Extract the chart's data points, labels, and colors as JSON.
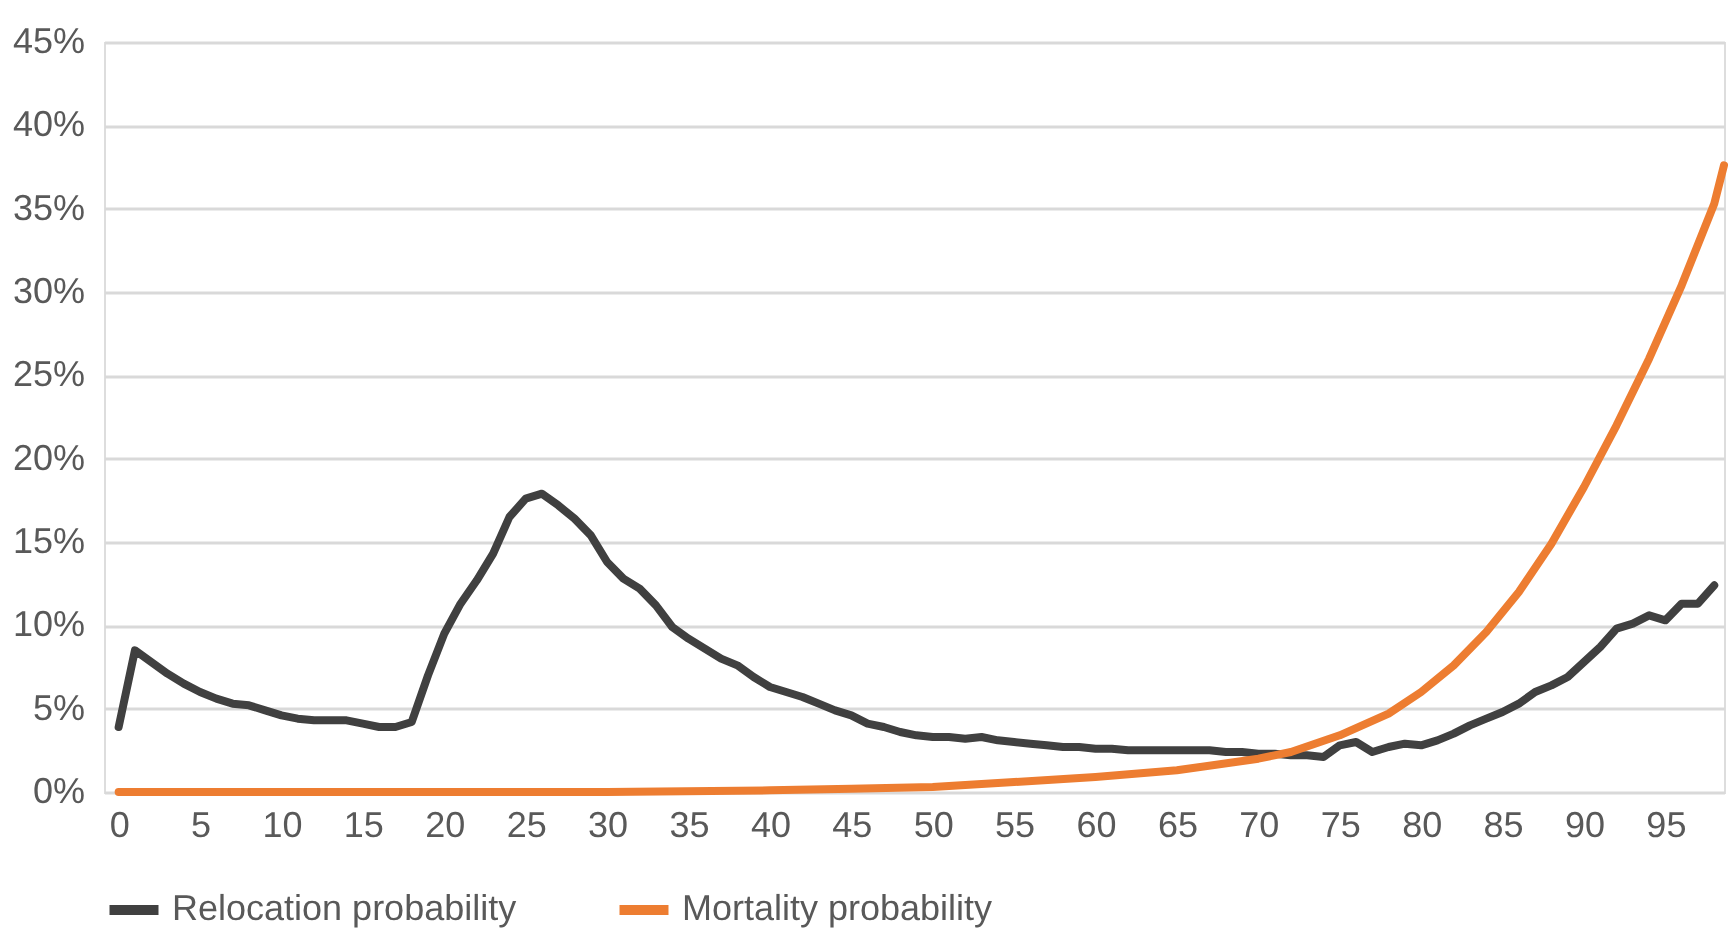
{
  "chart_data": {
    "type": "line",
    "x": [
      0,
      1,
      2,
      3,
      4,
      5,
      6,
      7,
      8,
      9,
      10,
      11,
      12,
      13,
      14,
      15,
      16,
      17,
      18,
      19,
      20,
      21,
      22,
      23,
      24,
      25,
      26,
      27,
      28,
      29,
      30,
      31,
      32,
      33,
      34,
      35,
      36,
      37,
      38,
      39,
      40,
      41,
      42,
      43,
      44,
      45,
      46,
      47,
      48,
      49,
      50,
      51,
      52,
      53,
      54,
      55,
      56,
      57,
      58,
      59,
      60,
      61,
      62,
      63,
      64,
      65,
      66,
      67,
      68,
      69,
      70,
      71,
      72,
      73,
      74,
      75,
      76,
      77,
      78,
      79,
      80,
      81,
      82,
      83,
      84,
      85,
      86,
      87,
      88,
      89,
      90,
      91,
      92,
      93,
      94,
      95,
      96,
      97,
      98
    ],
    "series": [
      {
        "name": "Relocation probability",
        "color": "#404040",
        "values": [
          3.9,
          8.5,
          7.8,
          7.1,
          6.5,
          6.0,
          5.6,
          5.3,
          5.2,
          4.9,
          4.6,
          4.4,
          4.3,
          4.3,
          4.3,
          4.1,
          3.9,
          3.9,
          4.2,
          7.0,
          9.5,
          11.3,
          12.7,
          14.3,
          16.5,
          17.6,
          17.9,
          17.2,
          16.4,
          15.4,
          13.8,
          12.8,
          12.2,
          11.2,
          9.9,
          9.2,
          8.6,
          8.0,
          7.6,
          6.9,
          6.3,
          6.0,
          5.7,
          5.3,
          4.9,
          4.6,
          4.1,
          3.9,
          3.6,
          3.4,
          3.3,
          3.3,
          3.2,
          3.3,
          3.1,
          3.0,
          2.9,
          2.8,
          2.7,
          2.7,
          2.6,
          2.6,
          2.5,
          2.5,
          2.5,
          2.5,
          2.5,
          2.5,
          2.4,
          2.4,
          2.3,
          2.3,
          2.2,
          2.2,
          2.1,
          2.8,
          3.0,
          2.4,
          2.7,
          2.9,
          2.8,
          3.1,
          3.5,
          4.0,
          4.4,
          4.8,
          5.3,
          6.0,
          6.4,
          6.9,
          7.8,
          8.7,
          9.8,
          10.1,
          10.6,
          10.3,
          11.3,
          11.3,
          12.4
        ]
      },
      {
        "name": "Mortality probability",
        "color": "#ed7d31",
        "x": [
          0,
          10,
          20,
          30,
          40,
          45,
          50,
          55,
          60,
          65,
          70,
          72,
          75,
          78,
          80,
          82,
          84,
          85,
          86,
          88,
          90,
          92,
          94,
          96,
          98,
          98.6
        ],
        "values": [
          0.0,
          0.0,
          0.0,
          0.0,
          0.1,
          0.2,
          0.3,
          0.6,
          0.9,
          1.3,
          2.0,
          2.4,
          3.4,
          4.7,
          6.0,
          7.6,
          9.6,
          10.8,
          12.0,
          14.9,
          18.3,
          22.0,
          26.0,
          30.4,
          35.3,
          37.6
        ]
      }
    ],
    "xlim": [
      -0.9,
      98.6
    ],
    "xticks": [
      0,
      5,
      10,
      15,
      20,
      25,
      30,
      35,
      40,
      45,
      50,
      55,
      60,
      65,
      70,
      75,
      80,
      85,
      90,
      95
    ],
    "ylim": [
      0,
      45
    ],
    "yticks": [
      {
        "value": 0,
        "label": "0%"
      },
      {
        "value": 5,
        "label": "5%"
      },
      {
        "value": 10,
        "label": "10%"
      },
      {
        "value": 15,
        "label": "15%"
      },
      {
        "value": 20,
        "label": "20%"
      },
      {
        "value": 25,
        "label": "25%"
      },
      {
        "value": 30,
        "label": "30%"
      },
      {
        "value": 35,
        "label": "35%"
      },
      {
        "value": 40,
        "label": "40%"
      },
      {
        "value": 45,
        "label": "45%"
      }
    ],
    "grid": "y",
    "legend": "bottom",
    "marker": "none",
    "line_style": "solid"
  }
}
